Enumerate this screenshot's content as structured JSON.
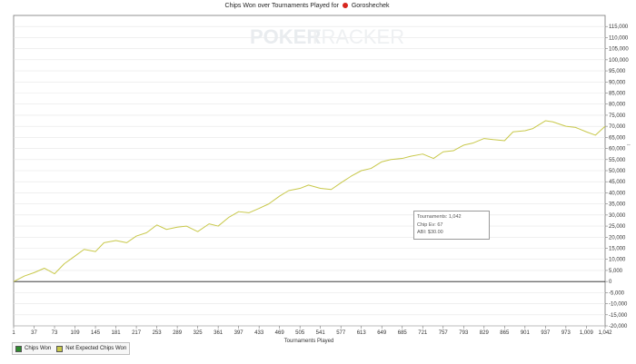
{
  "header": {
    "title_text": "Chips Won over Tournaments Played for",
    "player": "Goroshechek"
  },
  "watermark": {
    "part1": "POKER",
    "part2": "TRACKER"
  },
  "tooltip": {
    "line1": "Tournaments: 1,042",
    "line2": "Chip Ev: 67",
    "line3": "ABI: $30.00"
  },
  "legend": {
    "items": [
      {
        "label": "Chips Won",
        "color": "#2e8b2e"
      },
      {
        "label": "Net Expected Chips Won",
        "color": "#c8c84a"
      }
    ]
  },
  "colors": {
    "line": "#c8c84a",
    "zero_line": "#222222",
    "grid": "#e6e6e6"
  },
  "chart_data": {
    "type": "line",
    "title": "Chips Won over Tournaments Played for Goroshechek",
    "xlabel": "Tournaments Played",
    "ylabel": "",
    "xlim": [
      1,
      1042
    ],
    "ylim": [
      -20000,
      120000
    ],
    "x_ticks": [
      1,
      37,
      73,
      109,
      145,
      181,
      217,
      253,
      289,
      325,
      361,
      397,
      433,
      469,
      505,
      541,
      577,
      613,
      649,
      685,
      721,
      757,
      793,
      829,
      865,
      901,
      937,
      973,
      1009,
      1042
    ],
    "y_ticks": [
      -20000,
      -15000,
      -10000,
      -5000,
      0,
      5000,
      10000,
      15000,
      20000,
      25000,
      30000,
      35000,
      40000,
      45000,
      50000,
      55000,
      60000,
      65000,
      70000,
      75000,
      80000,
      85000,
      90000,
      95000,
      100000,
      105000,
      110000,
      115000
    ],
    "series": [
      {
        "name": "Net Expected Chips Won",
        "x": [
          1,
          20,
          37,
          55,
          73,
          90,
          109,
          125,
          145,
          160,
          181,
          200,
          217,
          235,
          253,
          270,
          289,
          305,
          325,
          345,
          361,
          380,
          397,
          415,
          433,
          450,
          469,
          485,
          505,
          520,
          541,
          560,
          577,
          595,
          613,
          630,
          649,
          665,
          685,
          700,
          721,
          740,
          757,
          775,
          793,
          810,
          829,
          845,
          865,
          880,
          901,
          915,
          937,
          950,
          973,
          990,
          1009,
          1025,
          1042
        ],
        "y": [
          0,
          2500,
          4000,
          6000,
          3500,
          8000,
          11500,
          14500,
          13500,
          17500,
          18500,
          17500,
          20500,
          22000,
          25500,
          23500,
          24500,
          25000,
          22500,
          26000,
          25000,
          29000,
          31500,
          31000,
          33000,
          35000,
          38500,
          41000,
          42000,
          43500,
          42000,
          41500,
          44500,
          47500,
          50000,
          51000,
          54000,
          55000,
          55500,
          56500,
          57500,
          55500,
          58500,
          59000,
          61500,
          62500,
          64500,
          64000,
          63500,
          67500,
          68000,
          69000,
          72500,
          72000,
          70000,
          69500,
          67500,
          66000,
          70000
        ]
      }
    ],
    "grid": true,
    "legend_position": "bottom-left"
  }
}
